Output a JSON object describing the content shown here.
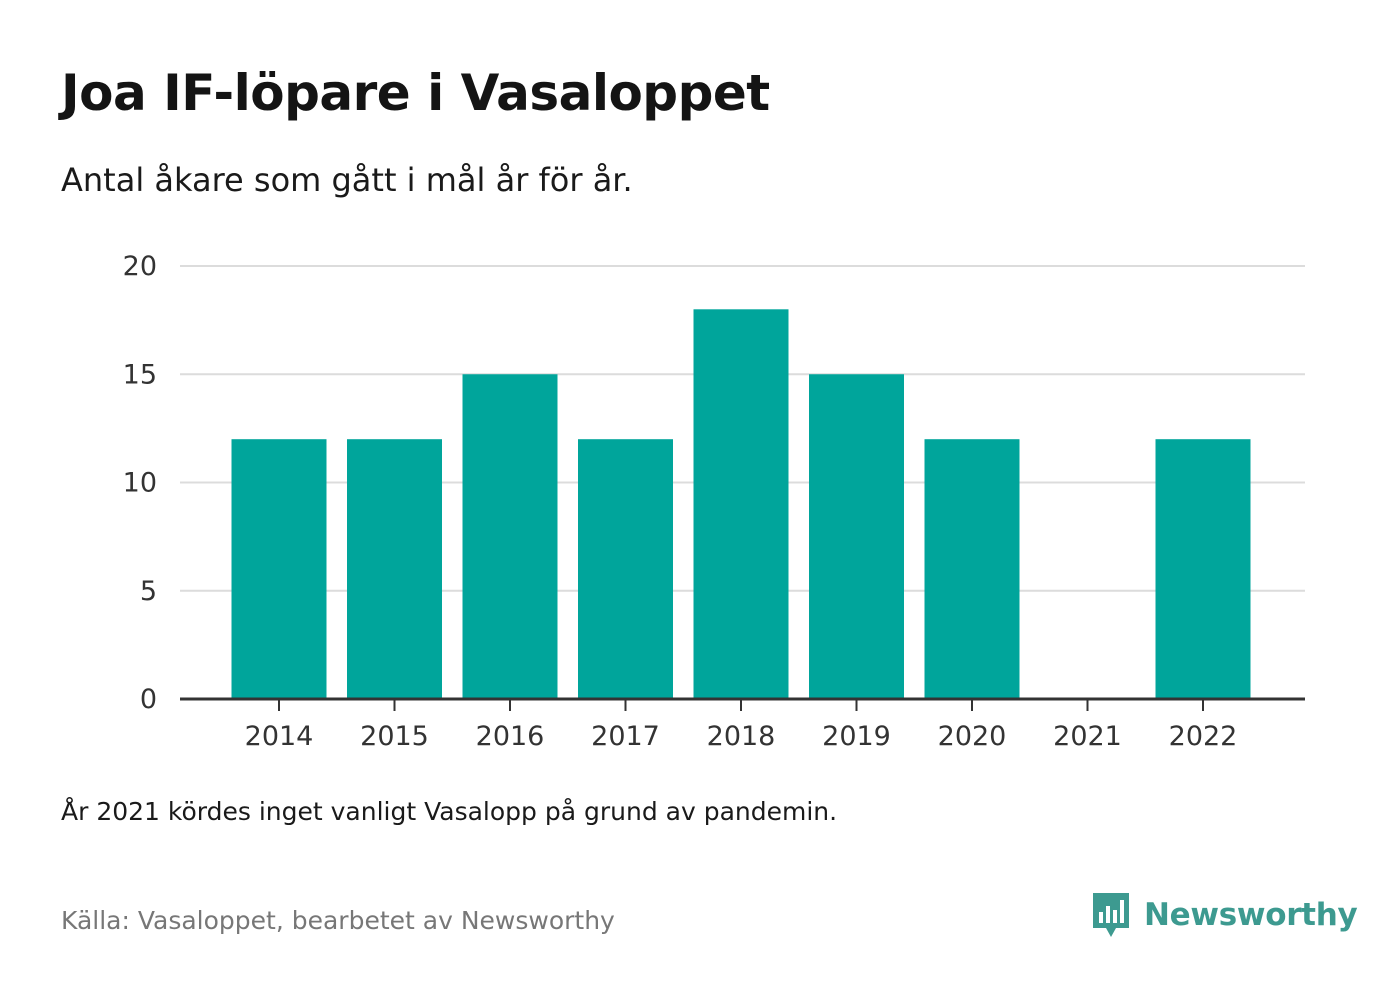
{
  "title": "Joa IF-löpare i Vasaloppet",
  "subtitle": "Antal åkare som gått i mål år för år.",
  "note": "År 2021 kördes inget vanligt Vasalopp på grund av pandemin.",
  "source": "Källa: Vasaloppet, bearbetet av Newsworthy",
  "brand": {
    "name": "Newsworthy",
    "color": "#3d9a90",
    "icon": "newsworthy-logo-icon"
  },
  "chart_data": {
    "type": "bar",
    "categories": [
      "2014",
      "2015",
      "2016",
      "2017",
      "2018",
      "2019",
      "2020",
      "2021",
      "2022"
    ],
    "values": [
      12,
      12,
      15,
      12,
      18,
      15,
      12,
      0,
      12
    ],
    "ylim": [
      0,
      20
    ],
    "yticks": [
      0,
      5,
      10,
      15,
      20
    ],
    "bar_color": "#00a59b",
    "grid": true,
    "xlabel": "",
    "ylabel": ""
  }
}
